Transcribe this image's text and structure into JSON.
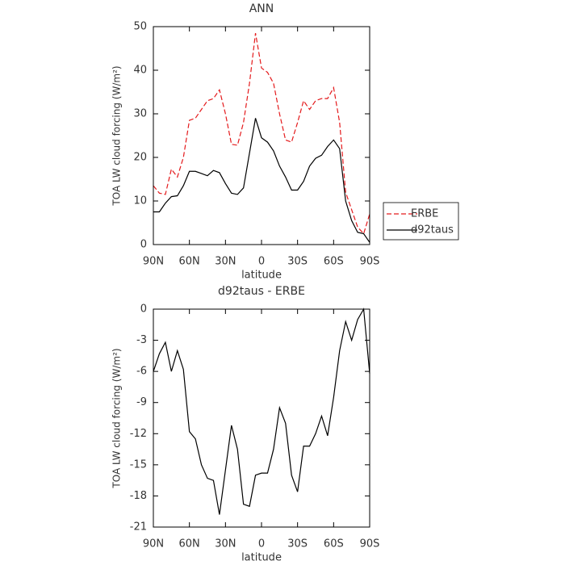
{
  "chart_data": [
    {
      "type": "line",
      "title": "ANN",
      "xlabel": "latitude",
      "ylabel": "TOA LW cloud forcing (W/m²)",
      "x": [
        90,
        85,
        80,
        75,
        70,
        65,
        60,
        55,
        50,
        45,
        40,
        35,
        30,
        25,
        20,
        15,
        10,
        5,
        0,
        -5,
        -10,
        -15,
        -20,
        -25,
        -30,
        -35,
        -40,
        -45,
        -50,
        -55,
        -60,
        -65,
        -70,
        -75,
        -80,
        -85,
        -90
      ],
      "series": [
        {
          "name": "ERBE",
          "color": "#e41a1c",
          "dash": true,
          "values": [
            13.5,
            11.8,
            11.5,
            17.3,
            15.5,
            20,
            28.5,
            29,
            31,
            33,
            33.5,
            35.5,
            30,
            23,
            22.8,
            28,
            37,
            48.5,
            40.5,
            39.5,
            37,
            30,
            24,
            23.5,
            28,
            33,
            31,
            33,
            33.5,
            33.5,
            36,
            28,
            12,
            8,
            4,
            2.5,
            7
          ]
        },
        {
          "name": "d92taus",
          "color": "#000000",
          "dash": false,
          "values": [
            7.5,
            7.5,
            9.5,
            11,
            11.2,
            13.5,
            16.8,
            16.8,
            16.3,
            15.8,
            17,
            16.5,
            14,
            11.8,
            11.5,
            13,
            21,
            29,
            24.5,
            23.5,
            21.5,
            18,
            15.5,
            12.5,
            12.5,
            14.5,
            18,
            19.8,
            20.5,
            22.5,
            24,
            22,
            10,
            5.5,
            2.8,
            2.5,
            0.5
          ]
        }
      ],
      "xlim": [
        90,
        -90
      ],
      "xticks": [
        {
          "value": 90,
          "label": "90N"
        },
        {
          "value": 60,
          "label": "60N"
        },
        {
          "value": 30,
          "label": "30N"
        },
        0,
        {
          "value": -30,
          "label": "30S"
        },
        {
          "value": -60,
          "label": "60S"
        },
        {
          "value": -90,
          "label": "90S"
        }
      ],
      "ylim": [
        0,
        50
      ],
      "yticks": [
        0,
        10,
        20,
        30,
        40,
        50
      ],
      "legend": "outside-right"
    },
    {
      "type": "line",
      "title": "d92taus - ERBE",
      "xlabel": "latitude",
      "ylabel": "TOA LW cloud forcing (W/m²)",
      "x": [
        90,
        85,
        80,
        75,
        70,
        65,
        60,
        55,
        50,
        45,
        40,
        35,
        30,
        25,
        20,
        15,
        10,
        5,
        0,
        -5,
        -10,
        -15,
        -20,
        -25,
        -30,
        -35,
        -40,
        -45,
        -50,
        -55,
        -60,
        -65,
        -70,
        -75,
        -80,
        -85,
        -90
      ],
      "values": [
        -6,
        -4.3,
        -3.2,
        -6,
        -4,
        -5.8,
        -11.8,
        -12.5,
        -15,
        -16.3,
        -16.5,
        -19.8,
        -15.5,
        -11.2,
        -13.5,
        -18.8,
        -19,
        -16,
        -15.8,
        -15.8,
        -13.5,
        -9.5,
        -11,
        -16,
        -17.6,
        -13.2,
        -13.2,
        -12,
        -10.3,
        -12.2,
        -8.5,
        -4,
        -1.2,
        -3,
        -1,
        0,
        -6.2
      ],
      "color": "#000000",
      "xlim": [
        90,
        -90
      ],
      "xticks": [
        {
          "value": 90,
          "label": "90N"
        },
        {
          "value": 60,
          "label": "60N"
        },
        {
          "value": 30,
          "label": "30N"
        },
        0,
        {
          "value": -30,
          "label": "30S"
        },
        {
          "value": -60,
          "label": "60S"
        },
        {
          "value": -90,
          "label": "90S"
        }
      ],
      "ylim": [
        -21,
        0
      ],
      "yticks": [
        -21,
        -18,
        -15,
        -12,
        -9,
        -6,
        -3,
        0
      ]
    }
  ]
}
